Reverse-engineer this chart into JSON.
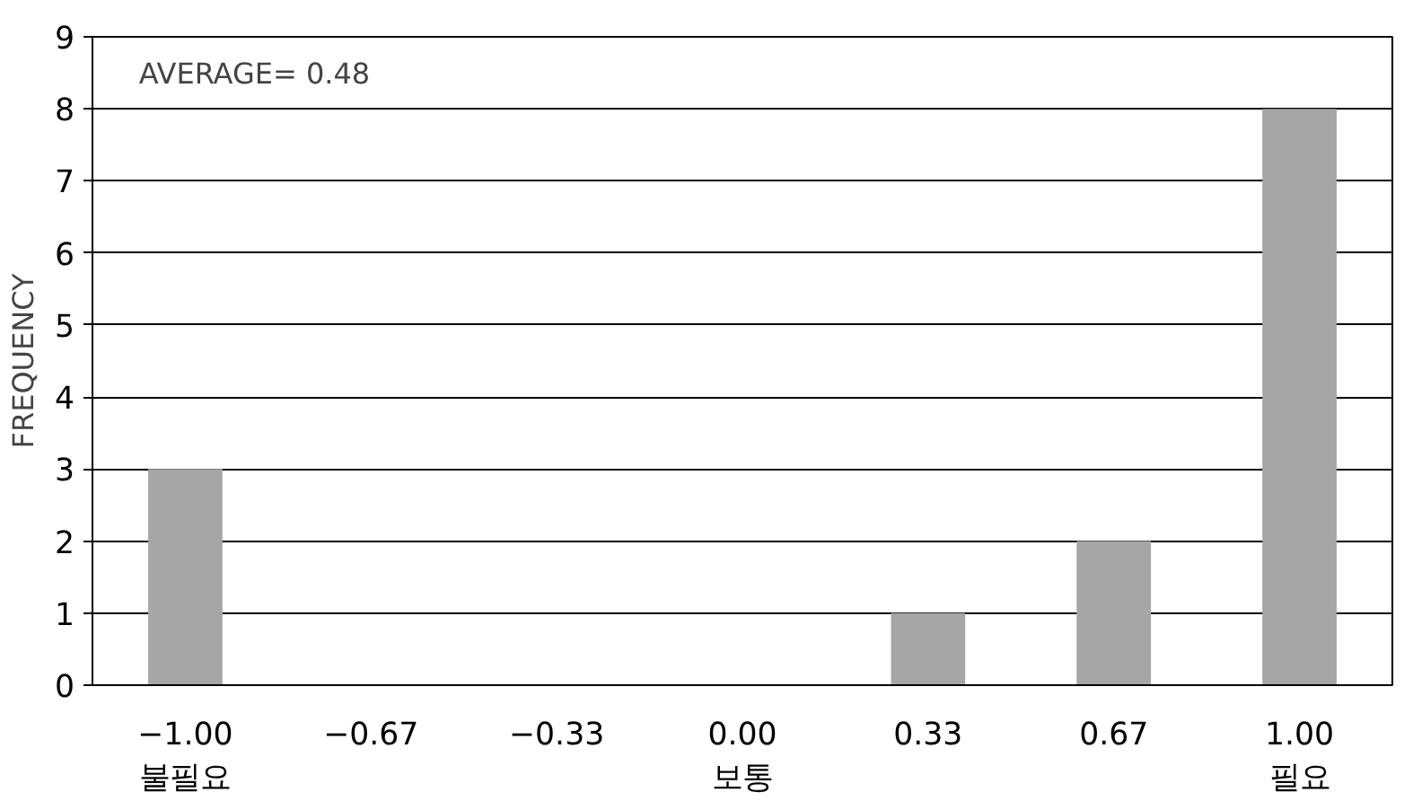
{
  "chart_data": {
    "type": "bar",
    "ylabel": "FREQUENCY",
    "categories": [
      "−1.00\n불필요",
      "−0.67",
      "−0.33",
      "0.00\n보통",
      "0.33",
      "0.67",
      "1.00\n필요"
    ],
    "values": [
      3,
      0,
      0,
      0,
      1,
      2,
      8
    ],
    "color": "#a6a6a6",
    "ylim": [
      0,
      9
    ],
    "yticks": [
      0,
      1,
      2,
      3,
      4,
      5,
      6,
      7,
      8,
      9
    ],
    "grid": "y",
    "annotations": [
      "AVERAGE= 0.48"
    ]
  }
}
